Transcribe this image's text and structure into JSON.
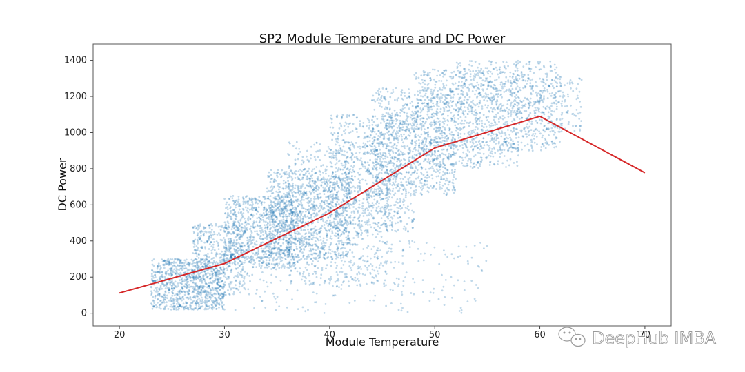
{
  "chart_data": {
    "type": "scatter",
    "title": "SP2 Module Temperature and DC Power",
    "xlabel": "Module Temperature",
    "ylabel": "DC Power",
    "xlim": [
      17.5,
      72.5
    ],
    "ylim": [
      -70,
      1490
    ],
    "xticks": [
      20,
      30,
      40,
      50,
      60,
      70
    ],
    "yticks": [
      0,
      200,
      400,
      600,
      800,
      1000,
      1200,
      1400
    ],
    "grid": false,
    "scatter_color": "#1f77b4",
    "line_color": "#d62728",
    "series": [
      {
        "kind": "line",
        "x": [
          20,
          30,
          40,
          50,
          60,
          70
        ],
        "y": [
          112,
          275,
          555,
          915,
          1090,
          778
        ]
      }
    ],
    "scatter_clusters": [
      {
        "x": [
          23,
          30
        ],
        "y": [
          20,
          300
        ],
        "n": 900
      },
      {
        "x": [
          27,
          32
        ],
        "y": [
          100,
          500
        ],
        "n": 450
      },
      {
        "x": [
          30,
          37
        ],
        "y": [
          250,
          650
        ],
        "n": 900
      },
      {
        "x": [
          34,
          42
        ],
        "y": [
          300,
          800
        ],
        "n": 1000
      },
      {
        "x": [
          36,
          46
        ],
        "y": [
          150,
          950
        ],
        "n": 700
      },
      {
        "x": [
          40,
          48
        ],
        "y": [
          450,
          1100
        ],
        "n": 800
      },
      {
        "x": [
          44,
          52
        ],
        "y": [
          650,
          1250
        ],
        "n": 800
      },
      {
        "x": [
          48,
          58
        ],
        "y": [
          800,
          1350
        ],
        "n": 800
      },
      {
        "x": [
          52,
          62
        ],
        "y": [
          900,
          1400
        ],
        "n": 600
      },
      {
        "x": [
          30,
          55
        ],
        "y": [
          0,
          400
        ],
        "n": 250
      },
      {
        "x": [
          58,
          64
        ],
        "y": [
          1000,
          1320
        ],
        "n": 200
      }
    ]
  },
  "watermark": {
    "text": "DeepHub IMBA",
    "icon": "wechat-icon"
  }
}
